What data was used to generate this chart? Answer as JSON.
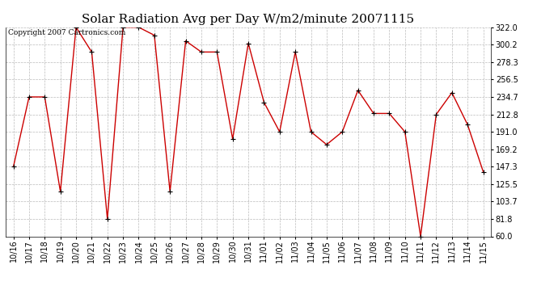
{
  "title": "Solar Radiation Avg per Day W/m2/minute 20071115",
  "copyright_text": "Copyright 2007 Cartronics.com",
  "dates": [
    "10/16",
    "10/17",
    "10/18",
    "10/19",
    "10/20",
    "10/21",
    "10/22",
    "10/23",
    "10/24",
    "10/25",
    "10/26",
    "10/27",
    "10/28",
    "10/29",
    "10/30",
    "10/31",
    "11/01",
    "11/02",
    "11/03",
    "11/04",
    "11/05",
    "11/06",
    "11/07",
    "11/08",
    "11/09",
    "11/10",
    "11/11",
    "11/12",
    "11/13",
    "11/14",
    "11/15"
  ],
  "values": [
    147.3,
    234.7,
    234.7,
    116.0,
    322.0,
    291.0,
    81.8,
    322.0,
    322.0,
    312.0,
    116.0,
    305.0,
    291.0,
    291.0,
    182.0,
    302.0,
    228.0,
    191.0,
    291.0,
    191.0,
    175.0,
    191.0,
    243.0,
    214.0,
    214.0,
    191.0,
    60.0,
    212.8,
    240.0,
    200.0,
    141.0
  ],
  "line_color": "#cc0000",
  "marker_color": "#000000",
  "bg_color": "#ffffff",
  "grid_color": "#bbbbbb",
  "ylim": [
    60.0,
    322.0
  ],
  "yticks": [
    60.0,
    81.8,
    103.7,
    125.5,
    147.3,
    169.2,
    191.0,
    212.8,
    234.7,
    256.5,
    278.3,
    300.2,
    322.0
  ],
  "title_fontsize": 11,
  "tick_fontsize": 7,
  "copyright_fontsize": 6.5
}
